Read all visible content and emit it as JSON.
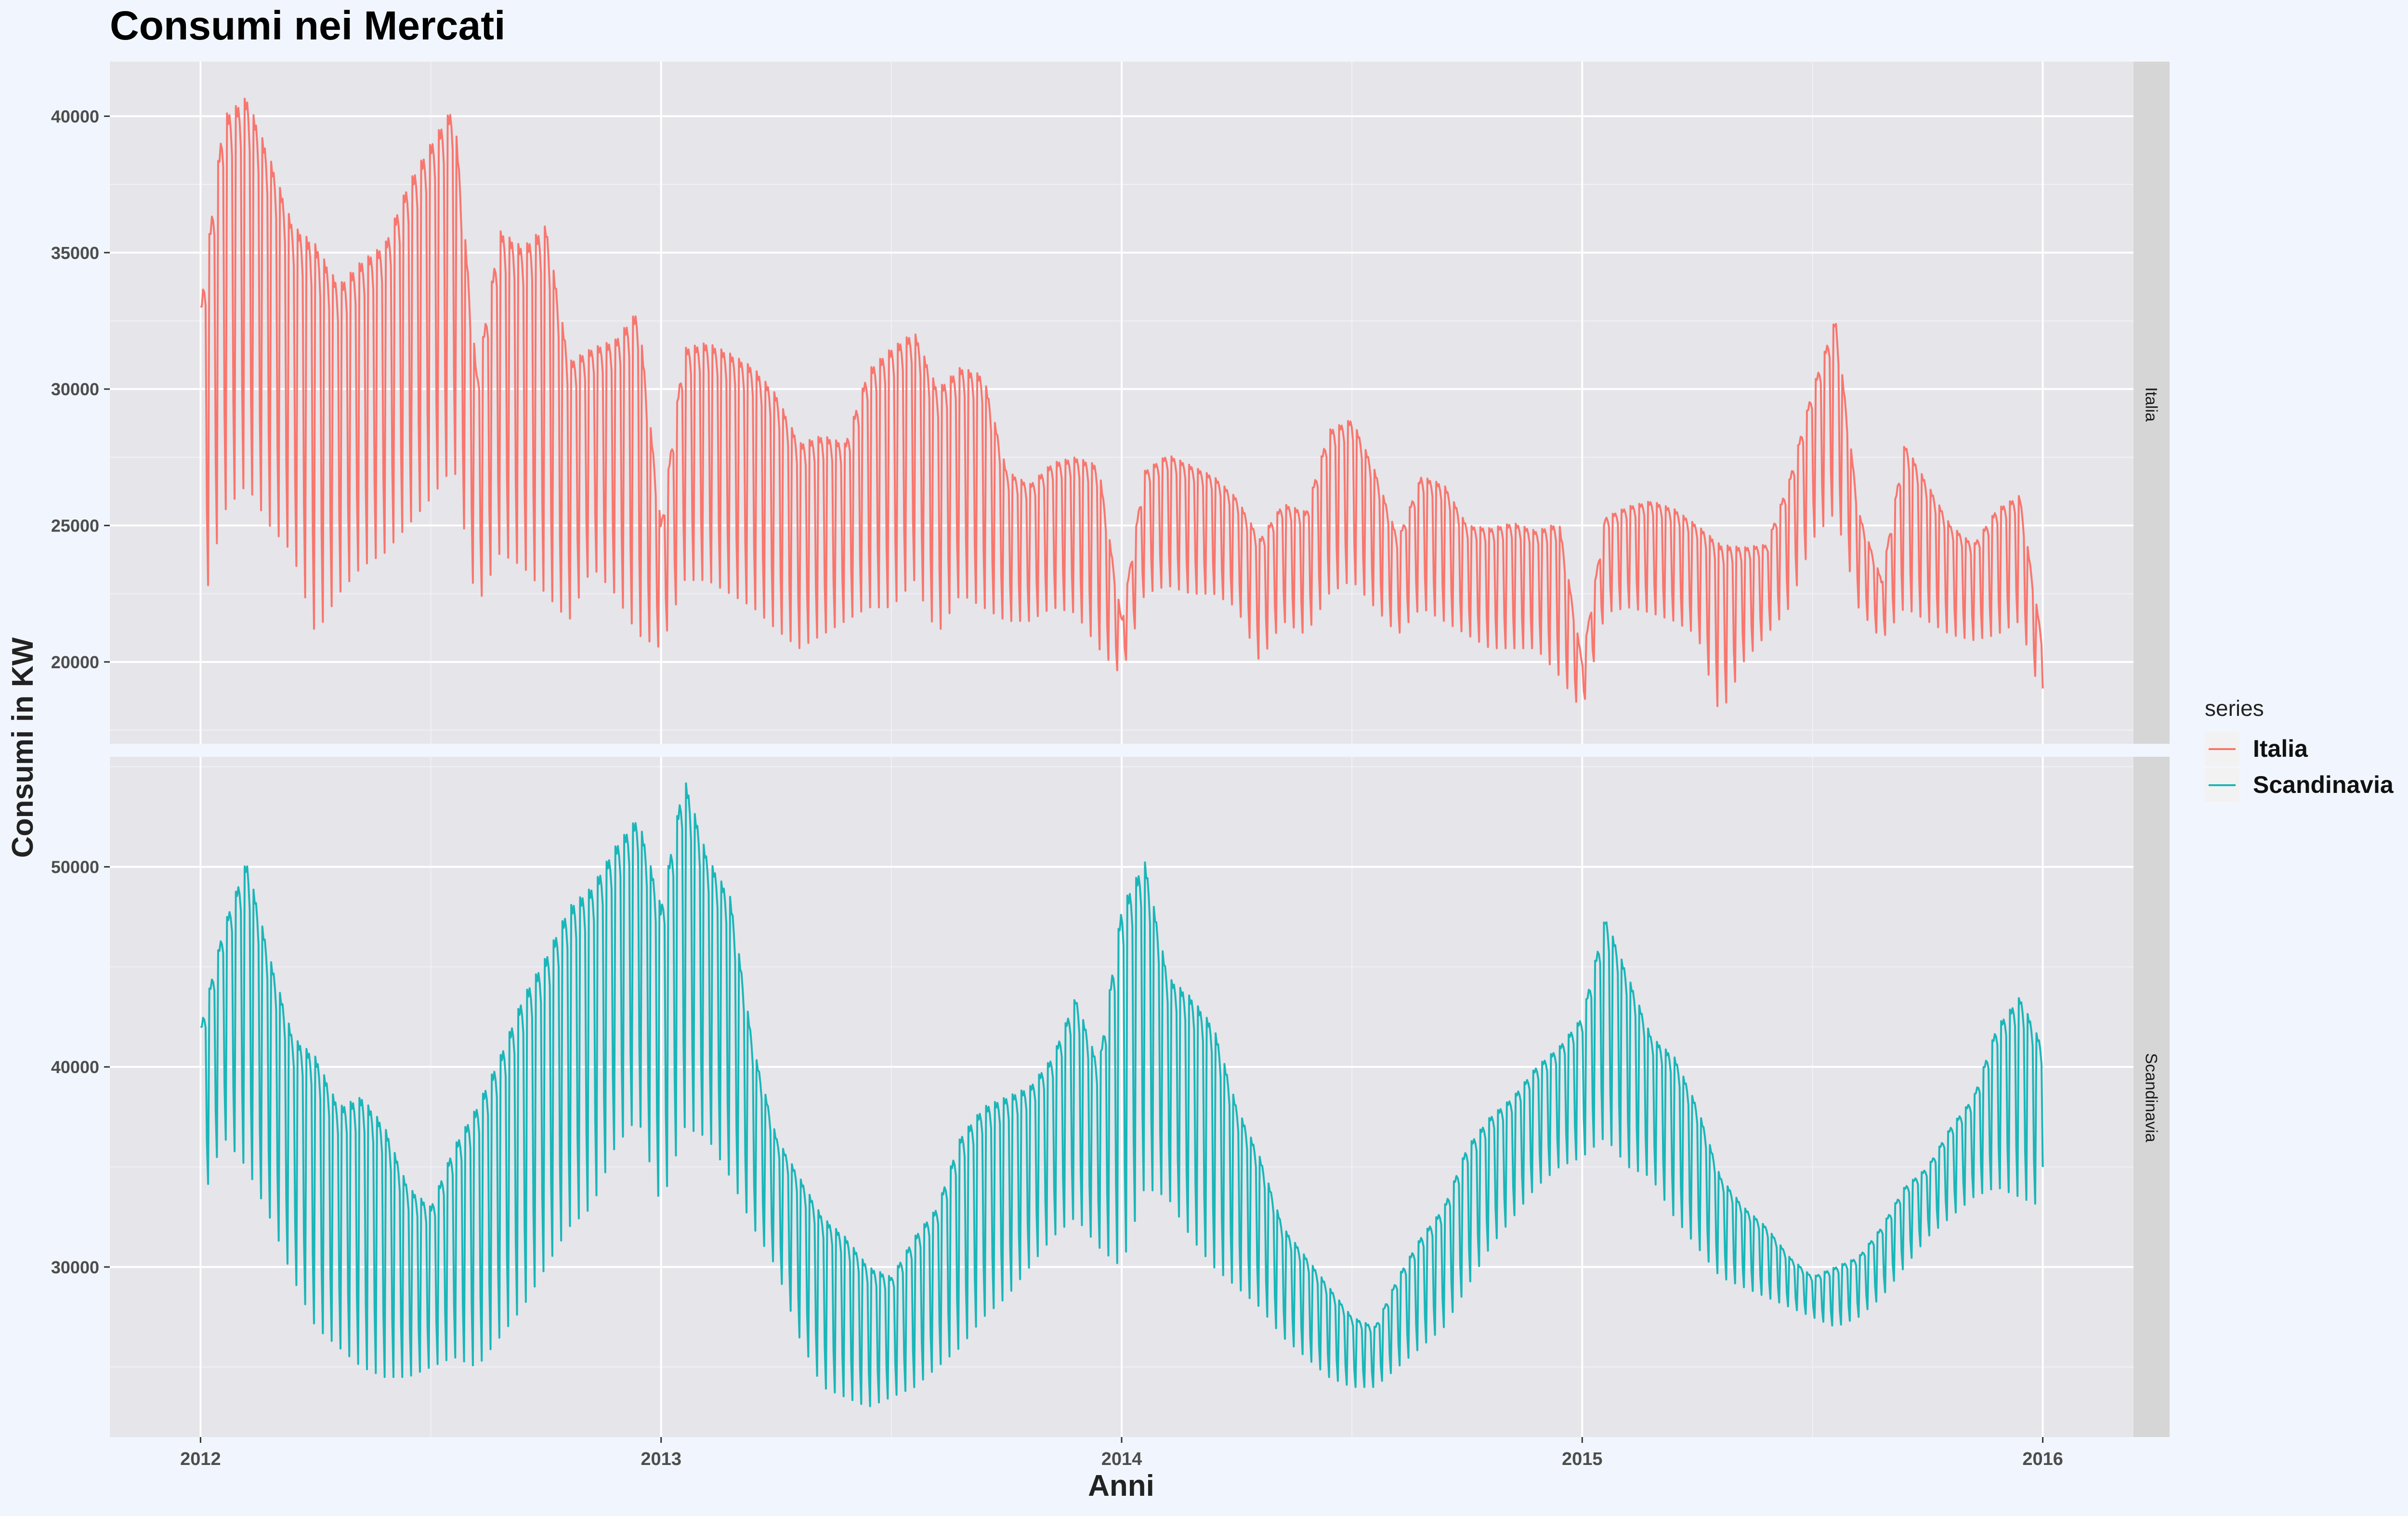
{
  "chart_data": {
    "type": "line",
    "title": "Consumi nei Mercati",
    "xlabel": "Anni",
    "ylabel": "Consumi in KW",
    "x_range": [
      2012,
      2016
    ],
    "x_ticks": [
      "2012",
      "2013",
      "2014",
      "2015",
      "2016"
    ],
    "legend": {
      "title": "series",
      "position": "right",
      "entries": [
        {
          "name": "Italia",
          "color": "#f8766d"
        },
        {
          "name": "Scandinavia",
          "color": "#1ab6b8"
        }
      ]
    },
    "grid": true,
    "facets": [
      {
        "strip_label": "Italia",
        "series": "Italia",
        "color": "#f8766d",
        "ylim": [
          17000,
          42000
        ],
        "y_ticks": [
          "20000",
          "25000",
          "30000",
          "35000",
          "40000"
        ],
        "envelope_x": [
          2012.0,
          2012.05,
          2012.1,
          2012.15,
          2012.2,
          2012.25,
          2012.3,
          2012.35,
          2012.4,
          2012.45,
          2012.5,
          2012.55,
          2012.6,
          2012.65,
          2012.7,
          2012.75,
          2012.8,
          2012.85,
          2012.9,
          2012.95,
          2013.0,
          2013.05,
          2013.1,
          2013.15,
          2013.2,
          2013.25,
          2013.3,
          2013.35,
          2013.4,
          2013.45,
          2013.5,
          2013.55,
          2013.6,
          2013.65,
          2013.7,
          2013.75,
          2013.8,
          2013.85,
          2013.9,
          2013.95,
          2014.0,
          2014.05,
          2014.1,
          2014.15,
          2014.2,
          2014.25,
          2014.3,
          2014.35,
          2014.4,
          2014.45,
          2014.5,
          2014.55,
          2014.6,
          2014.65,
          2014.7,
          2014.75,
          2014.8,
          2014.85,
          2014.9,
          2014.95,
          2015.0,
          2015.05,
          2015.1,
          2015.15,
          2015.2,
          2015.25,
          2015.3,
          2015.35,
          2015.4,
          2015.45,
          2015.5,
          2015.55,
          2015.6,
          2015.65,
          2015.7,
          2015.75,
          2015.8,
          2015.85,
          2015.9,
          2015.95,
          2016.0
        ],
        "envelope_high": [
          33000,
          40000,
          40700,
          38500,
          36000,
          35300,
          33800,
          34700,
          35300,
          37500,
          39000,
          40400,
          30500,
          35800,
          35200,
          36000,
          31000,
          31500,
          31800,
          32900,
          25000,
          31500,
          31700,
          31300,
          30800,
          29800,
          28000,
          28300,
          28000,
          30700,
          31500,
          32100,
          30000,
          30800,
          30500,
          27000,
          26500,
          27300,
          27500,
          27200,
          21500,
          27000,
          27600,
          27200,
          26800,
          26000,
          24500,
          25800,
          25500,
          28500,
          28900,
          27000,
          24500,
          26800,
          26500,
          25000,
          24900,
          25100,
          24800,
          25100,
          20000,
          25300,
          25700,
          25900,
          25600,
          25000,
          24300,
          24200,
          24300,
          26700,
          30000,
          32600,
          25500,
          23000,
          28000,
          26500,
          25000,
          24300,
          25600,
          26100,
          20600
        ],
        "envelope_low": [
          21500,
          25500,
          26500,
          25000,
          24000,
          21000,
          22500,
          23500,
          24000,
          25000,
          26000,
          27200,
          22000,
          24000,
          23500,
          22500,
          21500,
          23500,
          22500,
          21000,
          20500,
          23000,
          23000,
          22500,
          22000,
          21200,
          20500,
          21000,
          21500,
          22000,
          22000,
          23000,
          21000,
          22500,
          22000,
          21500,
          21500,
          22000,
          21800,
          20500,
          19500,
          22500,
          22800,
          22500,
          22500,
          22000,
          20000,
          21500,
          21000,
          22500,
          23000,
          22000,
          21000,
          22000,
          21500,
          21000,
          20500,
          20500,
          20500,
          19500,
          18200,
          21800,
          22000,
          21800,
          21500,
          21000,
          18000,
          20000,
          21000,
          22000,
          24500,
          25500,
          22000,
          20800,
          22000,
          21500,
          21000,
          20800,
          21000,
          21500,
          18500
        ]
      },
      {
        "strip_label": "Scandinavia",
        "series": "Scandinavia",
        "color": "#1ab6b8",
        "ylim": [
          21500,
          55500
        ],
        "y_ticks": [
          "30000",
          "40000",
          "50000"
        ],
        "envelope_x": [
          2012.0,
          2012.05,
          2012.1,
          2012.15,
          2012.2,
          2012.25,
          2012.3,
          2012.35,
          2012.4,
          2012.45,
          2012.5,
          2012.55,
          2012.6,
          2012.65,
          2012.7,
          2012.75,
          2012.8,
          2012.85,
          2012.9,
          2012.95,
          2013.0,
          2013.05,
          2013.1,
          2013.15,
          2013.2,
          2013.25,
          2013.3,
          2013.35,
          2013.4,
          2013.45,
          2013.5,
          2013.55,
          2013.6,
          2013.65,
          2013.7,
          2013.75,
          2013.8,
          2013.85,
          2013.9,
          2013.95,
          2014.0,
          2014.05,
          2014.1,
          2014.15,
          2014.2,
          2014.25,
          2014.3,
          2014.35,
          2014.4,
          2014.45,
          2014.5,
          2014.55,
          2014.6,
          2014.65,
          2014.7,
          2014.75,
          2014.8,
          2014.85,
          2014.9,
          2014.95,
          2015.0,
          2015.05,
          2015.1,
          2015.15,
          2015.2,
          2015.25,
          2015.3,
          2015.35,
          2015.4,
          2015.45,
          2015.5,
          2015.55,
          2015.6,
          2015.65,
          2015.7,
          2015.75,
          2015.8,
          2015.85,
          2015.9,
          2015.95,
          2016.0
        ],
        "envelope_high": [
          42000,
          47000,
          50300,
          45500,
          41500,
          40500,
          38000,
          38500,
          37000,
          34000,
          33000,
          36000,
          38000,
          40500,
          43500,
          45500,
          48000,
          49000,
          51000,
          52500,
          48000,
          54500,
          50500,
          48500,
          41000,
          36500,
          34500,
          32500,
          31500,
          30000,
          29500,
          31500,
          33000,
          36500,
          38000,
          38500,
          39000,
          40500,
          43500,
          40000,
          48000,
          50300,
          44500,
          43500,
          42000,
          38000,
          35500,
          32000,
          30500,
          29000,
          27500,
          27000,
          29500,
          31500,
          33000,
          36000,
          37500,
          38500,
          40000,
          41000,
          42500,
          47500,
          44500,
          41500,
          40500,
          38000,
          34500,
          33000,
          32000,
          30500,
          29500,
          30000,
          30500,
          32000,
          34000,
          35000,
          37000,
          38500,
          42000,
          43500,
          41000
        ],
        "envelope_low": [
          33000,
          36500,
          35000,
          32500,
          29500,
          27000,
          26000,
          25000,
          24500,
          24500,
          25000,
          25500,
          25000,
          26500,
          28000,
          30000,
          32000,
          33000,
          36000,
          37500,
          33000,
          37000,
          36500,
          34500,
          32000,
          30000,
          26500,
          24000,
          23500,
          23000,
          23500,
          24000,
          25000,
          26000,
          27500,
          28500,
          30000,
          31500,
          32500,
          31000,
          30000,
          34000,
          33500,
          31500,
          30000,
          29000,
          28000,
          26500,
          25500,
          24500,
          24000,
          24000,
          25000,
          26000,
          27000,
          29000,
          31000,
          32500,
          34000,
          35000,
          35500,
          36500,
          35000,
          34500,
          32500,
          31000,
          29500,
          29000,
          28500,
          28000,
          27500,
          27000,
          27500,
          28500,
          30000,
          31500,
          32500,
          33500,
          34000,
          33500,
          33000
        ]
      }
    ]
  }
}
